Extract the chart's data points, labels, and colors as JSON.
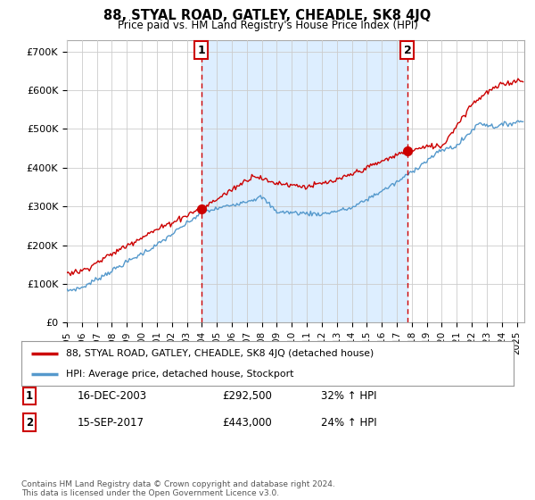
{
  "title": "88, STYAL ROAD, GATLEY, CHEADLE, SK8 4JQ",
  "subtitle": "Price paid vs. HM Land Registry's House Price Index (HPI)",
  "ylabel_ticks": [
    "£0",
    "£100K",
    "£200K",
    "£300K",
    "£400K",
    "£500K",
    "£600K",
    "£700K"
  ],
  "ytick_values": [
    0,
    100000,
    200000,
    300000,
    400000,
    500000,
    600000,
    700000
  ],
  "ylim": [
    0,
    730000
  ],
  "xlim_start": 1995.0,
  "xlim_end": 2025.5,
  "line1_color": "#cc0000",
  "line2_color": "#5599cc",
  "shade_color": "#ddeeff",
  "marker_color": "#cc0000",
  "transaction1_date": 2003.96,
  "transaction1_price": 292500,
  "transaction2_date": 2017.71,
  "transaction2_price": 443000,
  "legend_line1": "88, STYAL ROAD, GATLEY, CHEADLE, SK8 4JQ (detached house)",
  "legend_line2": "HPI: Average price, detached house, Stockport",
  "table_row1": [
    "1",
    "16-DEC-2003",
    "£292,500",
    "32% ↑ HPI"
  ],
  "table_row2": [
    "2",
    "15-SEP-2017",
    "£443,000",
    "24% ↑ HPI"
  ],
  "footer": "Contains HM Land Registry data © Crown copyright and database right 2024.\nThis data is licensed under the Open Government Licence v3.0.",
  "grid_color": "#cccccc",
  "background_color": "#ffffff",
  "dashed_color": "#cc0000",
  "xtick_years": [
    1995,
    1996,
    1997,
    1998,
    1999,
    2000,
    2001,
    2002,
    2003,
    2004,
    2005,
    2006,
    2007,
    2008,
    2009,
    2010,
    2011,
    2012,
    2013,
    2014,
    2015,
    2016,
    2017,
    2018,
    2019,
    2020,
    2021,
    2022,
    2023,
    2024,
    2025
  ]
}
